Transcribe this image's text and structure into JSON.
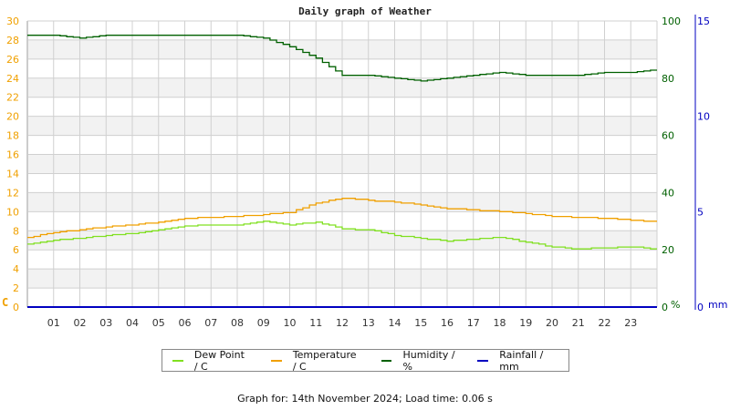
{
  "title": "Daily graph of Weather",
  "footer": "Graph for: 14th November 2024; Load time: 0.06 s",
  "colors": {
    "dew_point": "#80e020",
    "temperature": "#f0a000",
    "humidity": "#006000",
    "rainfall": "#0000c0",
    "grid": "#d0d0d0",
    "band": "#f2f2f2",
    "left_axis_text": "#f0a000",
    "right_axis_text": "#006000",
    "rain_axis_text": "#0000c0"
  },
  "legend": [
    {
      "label": "Dew Point / C",
      "color": "#80e020"
    },
    {
      "label": "Temperature / C",
      "color": "#f0a000"
    },
    {
      "label": "Humidity / %",
      "color": "#006000"
    },
    {
      "label": "Rainfall / mm",
      "color": "#0000c0"
    }
  ],
  "chart_data": {
    "type": "line",
    "title": "Daily graph of Weather",
    "xlabel": "",
    "x_ticks": [
      "01",
      "02",
      "03",
      "04",
      "05",
      "06",
      "07",
      "08",
      "09",
      "10",
      "11",
      "12",
      "13",
      "14",
      "15",
      "16",
      "17",
      "18",
      "19",
      "20",
      "21",
      "22",
      "23"
    ],
    "x": [
      0,
      1,
      2,
      3,
      4,
      5,
      6,
      7,
      8,
      9,
      10,
      11,
      12,
      13,
      14,
      15,
      16,
      17,
      18,
      19,
      20,
      21,
      22,
      23,
      24
    ],
    "axes": {
      "left": {
        "label": "C",
        "range": [
          0,
          30
        ],
        "ticks": [
          0,
          2,
          4,
          6,
          8,
          10,
          12,
          14,
          16,
          18,
          20,
          22,
          24,
          26,
          28,
          30
        ]
      },
      "right": {
        "label": "%",
        "range": [
          0,
          100
        ],
        "ticks": [
          0,
          20,
          40,
          60,
          80,
          100
        ]
      },
      "rain": {
        "label": "mm",
        "range": [
          0,
          15
        ],
        "ticks": [
          0,
          5,
          10,
          15
        ]
      }
    },
    "grid": true,
    "legend_position": "bottom",
    "series": [
      {
        "name": "Dew Point / C",
        "axis": "left",
        "values": [
          6.6,
          7.0,
          7.2,
          7.5,
          7.7,
          8.1,
          8.5,
          8.6,
          8.6,
          9.0,
          8.6,
          8.9,
          8.2,
          8.1,
          7.5,
          7.2,
          6.9,
          7.1,
          7.3,
          6.8,
          6.3,
          6.1,
          6.2,
          6.3,
          6.1
        ]
      },
      {
        "name": "Temperature / C",
        "axis": "left",
        "values": [
          7.3,
          7.8,
          8.1,
          8.4,
          8.6,
          8.9,
          9.3,
          9.4,
          9.5,
          9.7,
          9.9,
          10.9,
          11.4,
          11.2,
          11.0,
          10.7,
          10.3,
          10.2,
          10.0,
          9.8,
          9.5,
          9.4,
          9.3,
          9.1,
          8.9
        ]
      },
      {
        "name": "Humidity / %",
        "axis": "right",
        "values": [
          95,
          95,
          94,
          95,
          95,
          95,
          95,
          95,
          95,
          94,
          91,
          87,
          81,
          81,
          80,
          79,
          80,
          81,
          82,
          81,
          81,
          81,
          82,
          82,
          83
        ]
      },
      {
        "name": "Rainfall / mm",
        "axis": "rain",
        "values": [
          0,
          0,
          0,
          0,
          0,
          0,
          0,
          0,
          0,
          0,
          0,
          0,
          0,
          0,
          0,
          0,
          0,
          0,
          0,
          0,
          0,
          0,
          0,
          0,
          0
        ]
      }
    ]
  }
}
